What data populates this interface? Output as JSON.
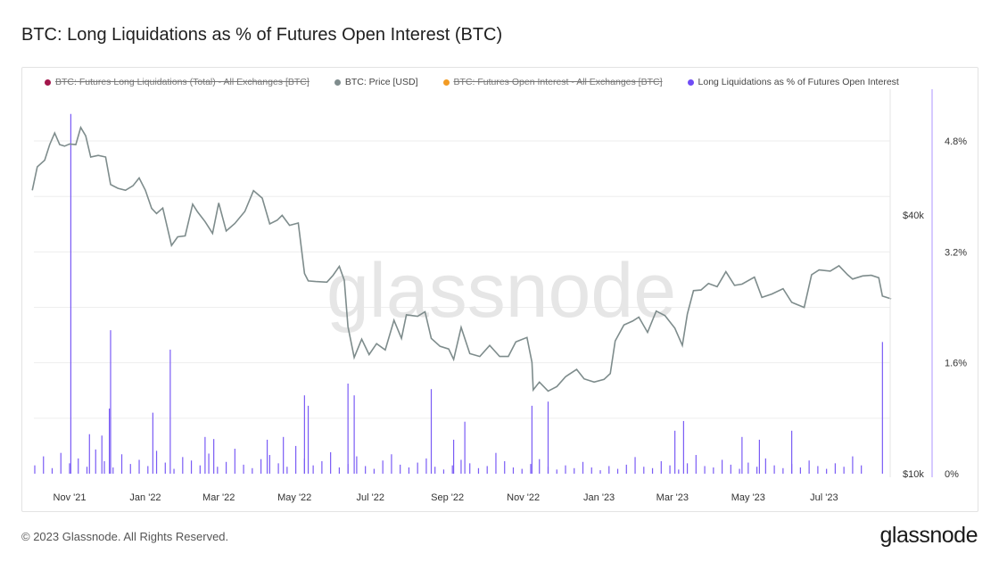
{
  "title": "BTC: Long Liquidations as % of Futures Open Interest (BTC)",
  "footer": "© 2023 Glassnode. All Rights Reserved.",
  "logo": "glassnode",
  "watermark": "glassnode",
  "colors": {
    "price": "#7e8c8c",
    "bars": "#7a5cf5",
    "axis_line": "#c9b9ff",
    "grid": "#eeeeee"
  },
  "chart_data": {
    "type": "line+bar",
    "title": "BTC: Long Liquidations as % of Futures Open Interest (BTC)",
    "legend": [
      {
        "label": "BTC: Futures Long Liquidations (Total) - All Exchanges [BTC]",
        "color": "#a3164b",
        "enabled": false
      },
      {
        "label": "BTC: Price [USD]",
        "color": "#7f8c8d",
        "enabled": true
      },
      {
        "label": "BTC: Futures Open Interest - All Exchanges [BTC]",
        "color": "#f29b24",
        "enabled": false
      },
      {
        "label": "Long Liquidations as % of Futures Open Interest",
        "color": "#6f4cf6",
        "enabled": true
      }
    ],
    "legend_placement": "top-left",
    "x_ticks": [
      {
        "label": "Nov '21",
        "date": "2021-11-01"
      },
      {
        "label": "Jan '22",
        "date": "2022-01-01"
      },
      {
        "label": "Mar '22",
        "date": "2022-03-01"
      },
      {
        "label": "May '22",
        "date": "2022-05-01"
      },
      {
        "label": "Jul '22",
        "date": "2022-07-01"
      },
      {
        "label": "Sep '22",
        "date": "2022-09-01"
      },
      {
        "label": "Nov '22",
        "date": "2022-11-01"
      },
      {
        "label": "Jan '23",
        "date": "2023-01-01"
      },
      {
        "label": "Mar '23",
        "date": "2023-03-01"
      },
      {
        "label": "May '23",
        "date": "2023-05-01"
      },
      {
        "label": "Jul '23",
        "date": "2023-07-01"
      }
    ],
    "x_range": [
      "2021-10-02",
      "2023-08-24"
    ],
    "price_axis": {
      "scale": "log",
      "ticks": [
        {
          "label": "$10k",
          "value": 10000
        },
        {
          "label": "$40k",
          "value": 40000
        }
      ]
    },
    "pct_axis": {
      "range": [
        0,
        5.5
      ],
      "ticks": [
        {
          "label": "0%",
          "value": 0
        },
        {
          "label": "1.6%",
          "value": 1.6
        },
        {
          "label": "3.2%",
          "value": 3.2
        },
        {
          "label": "4.8%",
          "value": 4.8
        }
      ]
    },
    "price_series": [
      [
        "2021-10-02",
        47500
      ],
      [
        "2021-10-06",
        54000
      ],
      [
        "2021-10-12",
        56000
      ],
      [
        "2021-10-16",
        61000
      ],
      [
        "2021-10-20",
        65000
      ],
      [
        "2021-10-24",
        61000
      ],
      [
        "2021-10-28",
        60500
      ],
      [
        "2021-11-01",
        61200
      ],
      [
        "2021-11-06",
        61000
      ],
      [
        "2021-11-10",
        67000
      ],
      [
        "2021-11-14",
        64000
      ],
      [
        "2021-11-18",
        57000
      ],
      [
        "2021-11-24",
        57500
      ],
      [
        "2021-11-30",
        57000
      ],
      [
        "2021-12-04",
        49000
      ],
      [
        "2021-12-10",
        48000
      ],
      [
        "2021-12-16",
        47500
      ],
      [
        "2021-12-22",
        48700
      ],
      [
        "2021-12-27",
        50800
      ],
      [
        "2022-01-01",
        47500
      ],
      [
        "2022-01-06",
        43000
      ],
      [
        "2022-01-10",
        41800
      ],
      [
        "2022-01-15",
        43100
      ],
      [
        "2022-01-22",
        35100
      ],
      [
        "2022-01-27",
        36800
      ],
      [
        "2022-02-02",
        37000
      ],
      [
        "2022-02-08",
        44000
      ],
      [
        "2022-02-12",
        42200
      ],
      [
        "2022-02-18",
        40000
      ],
      [
        "2022-02-24",
        37500
      ],
      [
        "2022-03-01",
        44300
      ],
      [
        "2022-03-07",
        38000
      ],
      [
        "2022-03-14",
        39600
      ],
      [
        "2022-03-22",
        42300
      ],
      [
        "2022-03-29",
        47400
      ],
      [
        "2022-04-05",
        45500
      ],
      [
        "2022-04-11",
        39500
      ],
      [
        "2022-04-17",
        40300
      ],
      [
        "2022-04-21",
        41400
      ],
      [
        "2022-04-27",
        39200
      ],
      [
        "2022-05-04",
        39700
      ],
      [
        "2022-05-09",
        30100
      ],
      [
        "2022-05-12",
        28900
      ],
      [
        "2022-05-18",
        28800
      ],
      [
        "2022-05-27",
        28700
      ],
      [
        "2022-06-01",
        29800
      ],
      [
        "2022-06-06",
        31300
      ],
      [
        "2022-06-10",
        29000
      ],
      [
        "2022-06-13",
        22500
      ],
      [
        "2022-06-18",
        19000
      ],
      [
        "2022-06-24",
        21000
      ],
      [
        "2022-06-30",
        19300
      ],
      [
        "2022-07-06",
        20500
      ],
      [
        "2022-07-13",
        19800
      ],
      [
        "2022-07-20",
        23300
      ],
      [
        "2022-07-26",
        21100
      ],
      [
        "2022-07-30",
        24000
      ],
      [
        "2022-08-08",
        23800
      ],
      [
        "2022-08-14",
        24400
      ],
      [
        "2022-08-19",
        21100
      ],
      [
        "2022-08-26",
        20200
      ],
      [
        "2022-09-02",
        19900
      ],
      [
        "2022-09-06",
        18800
      ],
      [
        "2022-09-12",
        22400
      ],
      [
        "2022-09-19",
        19400
      ],
      [
        "2022-09-27",
        19100
      ],
      [
        "2022-10-05",
        20300
      ],
      [
        "2022-10-13",
        19100
      ],
      [
        "2022-10-20",
        19100
      ],
      [
        "2022-10-26",
        20700
      ],
      [
        "2022-11-04",
        21200
      ],
      [
        "2022-11-08",
        18500
      ],
      [
        "2022-11-09",
        15900
      ],
      [
        "2022-11-14",
        16600
      ],
      [
        "2022-11-21",
        15800
      ],
      [
        "2022-11-28",
        16200
      ],
      [
        "2022-12-05",
        17100
      ],
      [
        "2022-12-14",
        17800
      ],
      [
        "2022-12-20",
        16900
      ],
      [
        "2022-12-28",
        16600
      ],
      [
        "2023-01-05",
        16850
      ],
      [
        "2023-01-10",
        17400
      ],
      [
        "2023-01-14",
        20800
      ],
      [
        "2023-01-21",
        22700
      ],
      [
        "2023-01-28",
        23200
      ],
      [
        "2023-02-02",
        23700
      ],
      [
        "2023-02-09",
        21800
      ],
      [
        "2023-02-16",
        24500
      ],
      [
        "2023-02-23",
        23900
      ],
      [
        "2023-03-03",
        22300
      ],
      [
        "2023-03-09",
        20300
      ],
      [
        "2023-03-13",
        24100
      ],
      [
        "2023-03-18",
        27400
      ],
      [
        "2023-03-24",
        27500
      ],
      [
        "2023-03-30",
        28500
      ],
      [
        "2023-04-06",
        28000
      ],
      [
        "2023-04-13",
        30400
      ],
      [
        "2023-04-20",
        28200
      ],
      [
        "2023-04-26",
        28400
      ],
      [
        "2023-05-06",
        29500
      ],
      [
        "2023-05-12",
        26400
      ],
      [
        "2023-05-20",
        26900
      ],
      [
        "2023-05-29",
        27700
      ],
      [
        "2023-06-05",
        25700
      ],
      [
        "2023-06-15",
        25000
      ],
      [
        "2023-06-21",
        29900
      ],
      [
        "2023-06-27",
        30700
      ],
      [
        "2023-07-06",
        30500
      ],
      [
        "2023-07-13",
        31400
      ],
      [
        "2023-07-20",
        29900
      ],
      [
        "2023-07-24",
        29200
      ],
      [
        "2023-08-01",
        29700
      ],
      [
        "2023-08-08",
        29800
      ],
      [
        "2023-08-14",
        29400
      ],
      [
        "2023-08-17",
        26600
      ],
      [
        "2023-08-24",
        26200
      ]
    ],
    "liquidation_pct_spikes": [
      [
        "2021-11-02",
        5.19
      ],
      [
        "2021-11-17",
        0.57
      ],
      [
        "2021-11-27",
        0.55
      ],
      [
        "2021-12-03",
        0.94
      ],
      [
        "2021-12-04",
        2.07
      ],
      [
        "2022-01-07",
        0.88
      ],
      [
        "2022-01-21",
        1.79
      ],
      [
        "2022-02-18",
        0.53
      ],
      [
        "2022-02-25",
        0.5
      ],
      [
        "2022-04-09",
        0.49
      ],
      [
        "2022-04-22",
        0.53
      ],
      [
        "2022-05-09",
        1.13
      ],
      [
        "2022-05-12",
        0.98
      ],
      [
        "2022-06-13",
        1.3
      ],
      [
        "2022-06-18",
        1.13
      ],
      [
        "2022-08-19",
        1.22
      ],
      [
        "2022-09-06",
        0.49
      ],
      [
        "2022-09-15",
        0.75
      ],
      [
        "2022-11-08",
        0.98
      ],
      [
        "2022-11-21",
        1.04
      ],
      [
        "2023-03-03",
        0.62
      ],
      [
        "2023-03-10",
        0.76
      ],
      [
        "2023-04-26",
        0.53
      ],
      [
        "2023-05-10",
        0.49
      ],
      [
        "2023-06-05",
        0.62
      ],
      [
        "2023-08-17",
        1.9
      ]
    ],
    "liquidation_pct_baseline_weekly_start": "2021-10-04",
    "liquidation_pct_baseline_weekly": [
      0.12,
      0.25,
      0.08,
      0.3,
      0.15,
      0.22,
      0.1,
      0.35,
      0.18,
      0.09,
      0.28,
      0.14,
      0.2,
      0.11,
      0.33,
      0.16,
      0.07,
      0.24,
      0.19,
      0.12,
      0.29,
      0.1,
      0.17,
      0.36,
      0.13,
      0.08,
      0.21,
      0.27,
      0.15,
      0.1,
      0.4,
      0.22,
      0.12,
      0.18,
      0.31,
      0.09,
      0.14,
      0.25,
      0.11,
      0.07,
      0.19,
      0.28,
      0.13,
      0.09,
      0.16,
      0.22,
      0.1,
      0.06,
      0.12,
      0.2,
      0.15,
      0.08,
      0.11,
      0.3,
      0.18,
      0.09,
      0.07,
      0.14,
      0.21,
      0.1,
      0.06,
      0.12,
      0.08,
      0.17,
      0.09,
      0.05,
      0.11,
      0.07,
      0.13,
      0.24,
      0.1,
      0.08,
      0.18,
      0.12,
      0.06,
      0.15,
      0.27,
      0.11,
      0.09,
      0.2,
      0.13,
      0.07,
      0.16,
      0.1,
      0.22,
      0.12,
      0.08,
      0.14,
      0.09,
      0.19,
      0.11,
      0.07,
      0.15,
      0.1,
      0.25,
      0.12
    ]
  }
}
